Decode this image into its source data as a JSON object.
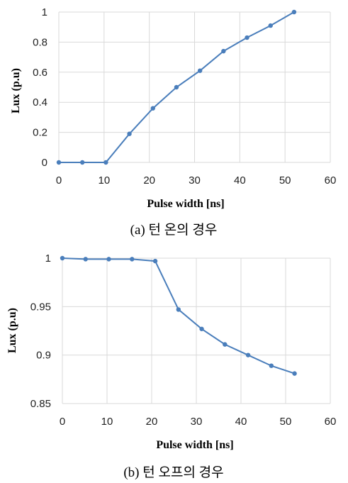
{
  "chart_data": [
    {
      "type": "line",
      "caption": "(a) 턴 온의 경우",
      "xlabel": "Pulse width [ns]",
      "ylabel": "Lux (p.u)",
      "xlim": [
        0,
        60
      ],
      "ylim": [
        0,
        1
      ],
      "xticks": [
        "0",
        "10",
        "20",
        "30",
        "40",
        "50",
        "60"
      ],
      "yticks": [
        "0",
        "0.2",
        "0.4",
        "0.6",
        "0.8",
        "1"
      ],
      "grid": true,
      "series": [
        {
          "color": "#4a7ebb",
          "x": [
            0,
            5.2,
            10.4,
            15.6,
            20.8,
            26,
            31.2,
            36.4,
            41.6,
            46.8,
            52
          ],
          "y": [
            0,
            0,
            0,
            0.19,
            0.36,
            0.5,
            0.61,
            0.74,
            0.83,
            0.91,
            1.0
          ]
        }
      ]
    },
    {
      "type": "line",
      "caption": "(b) 턴 오프의 경우",
      "xlabel": "Pulse width [ns]",
      "ylabel": "Lux (p.u)",
      "xlim": [
        0,
        60
      ],
      "ylim": [
        0.85,
        1
      ],
      "xticks": [
        "0",
        "10",
        "20",
        "30",
        "40",
        "50",
        "60"
      ],
      "yticks": [
        "0.85",
        "0.9",
        "0.95",
        "1"
      ],
      "grid": true,
      "series": [
        {
          "color": "#4a7ebb",
          "x": [
            0,
            5.2,
            10.4,
            15.6,
            20.8,
            26,
            31.2,
            36.4,
            41.6,
            46.8,
            52
          ],
          "y": [
            1.0,
            0.999,
            0.999,
            0.999,
            0.997,
            0.947,
            0.927,
            0.911,
            0.9,
            0.889,
            0.881
          ]
        }
      ]
    }
  ]
}
